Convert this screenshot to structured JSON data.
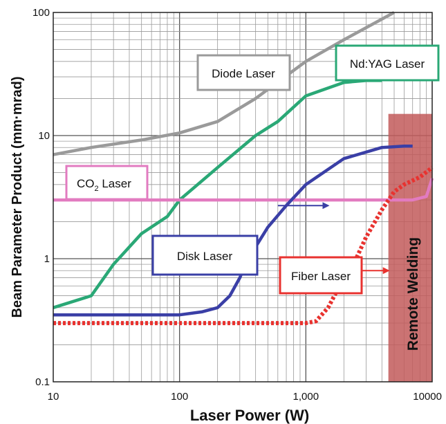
{
  "chart_data": {
    "type": "line",
    "xscale": "log",
    "yscale": "log",
    "xlim": [
      10,
      10000
    ],
    "ylim": [
      0.1,
      100
    ],
    "xlabel": "Laser Power (W)",
    "ylabel": "Beam Parameter Product  (mm·mrad)",
    "x_ticks": [
      "10",
      "100",
      "1,000",
      "10000"
    ],
    "y_ticks": [
      "0.1",
      "1",
      "10",
      "100"
    ],
    "grid": true,
    "series": [
      {
        "name": "Diode Laser",
        "color": "#9a9a9a",
        "style": "solid",
        "points": [
          [
            10,
            7
          ],
          [
            20,
            8
          ],
          [
            50,
            9.2
          ],
          [
            100,
            10.5
          ],
          [
            200,
            13
          ],
          [
            400,
            20
          ],
          [
            1000,
            40
          ],
          [
            2000,
            60
          ],
          [
            5000,
            100
          ]
        ]
      },
      {
        "name": "Nd:YAG Laser",
        "color": "#2aa876",
        "style": "solid",
        "points": [
          [
            10,
            0.4
          ],
          [
            20,
            0.5
          ],
          [
            30,
            0.9
          ],
          [
            50,
            1.6
          ],
          [
            80,
            2.2
          ],
          [
            100,
            3
          ],
          [
            200,
            5.5
          ],
          [
            400,
            10
          ],
          [
            600,
            13
          ],
          [
            1000,
            21
          ],
          [
            2000,
            27
          ],
          [
            3000,
            28
          ],
          [
            4000,
            28
          ]
        ]
      },
      {
        "name": "CO2 Laser",
        "label_main": "CO",
        "label_sub": "2",
        "label_tail": " Laser",
        "color": "#e27bc0",
        "style": "solid",
        "points": [
          [
            10,
            3
          ],
          [
            1000,
            3
          ],
          [
            5000,
            3
          ],
          [
            7000,
            3
          ],
          [
            9000,
            3.2
          ],
          [
            10000,
            4.5
          ]
        ]
      },
      {
        "name": "Disk Laser",
        "color": "#3a3fa6",
        "style": "solid",
        "points": [
          [
            10,
            0.35
          ],
          [
            100,
            0.35
          ],
          [
            150,
            0.37
          ],
          [
            200,
            0.4
          ],
          [
            250,
            0.5
          ],
          [
            300,
            0.7
          ],
          [
            350,
            1
          ],
          [
            500,
            1.8
          ],
          [
            700,
            2.7
          ],
          [
            1000,
            4
          ],
          [
            2000,
            6.5
          ],
          [
            4000,
            8
          ],
          [
            6000,
            8.2
          ],
          [
            7000,
            8.2
          ]
        ]
      },
      {
        "name": "Fiber Laser",
        "color": "#e8322f",
        "style": "dotted",
        "points": [
          [
            10,
            0.3
          ],
          [
            1000,
            0.3
          ],
          [
            1200,
            0.31
          ],
          [
            1500,
            0.4
          ],
          [
            2000,
            0.7
          ],
          [
            2500,
            1
          ],
          [
            3000,
            1.5
          ],
          [
            4000,
            2.5
          ],
          [
            5000,
            3.5
          ],
          [
            6000,
            4
          ],
          [
            8000,
            4.6
          ],
          [
            10000,
            5.5
          ]
        ]
      }
    ],
    "annotations": [
      {
        "text": "Remote Welding",
        "type": "shaded-region",
        "x_from": 4500,
        "x_to": 10000,
        "y_from": 0.1,
        "y_to": 15,
        "color": "#c25b5b"
      }
    ],
    "arrows": [
      {
        "color": "#3a3fa6",
        "from": [
          600,
          2.7
        ],
        "to": [
          1500,
          2.7
        ]
      },
      {
        "color": "#e8322f",
        "from": [
          2000,
          0.8
        ],
        "to": [
          4500,
          0.8
        ]
      }
    ]
  }
}
